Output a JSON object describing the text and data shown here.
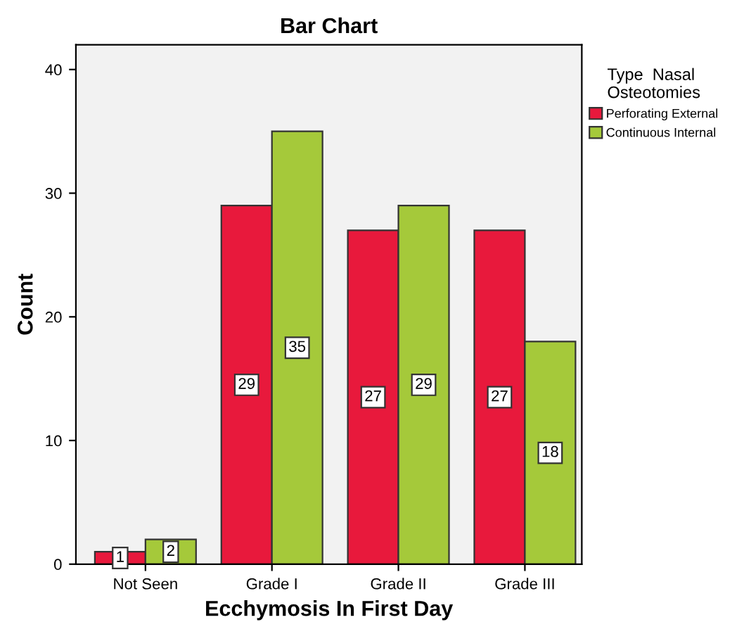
{
  "chart_data": {
    "type": "bar",
    "title": "Bar Chart",
    "xlabel": "Ecchymosis In First Day",
    "ylabel": "Count",
    "legend_title": "Type  Nasal\nOsteotomies",
    "categories": [
      "Not Seen",
      "Grade I",
      "Grade II",
      "Grade III"
    ],
    "series": [
      {
        "name": "Perforating External",
        "color": "#e8193c",
        "values": [
          1,
          29,
          27,
          27
        ]
      },
      {
        "name": "Continuous Internal",
        "color": "#a5c93a",
        "values": [
          2,
          35,
          29,
          18
        ]
      }
    ],
    "ylim": [
      0,
      42
    ],
    "yticks": [
      0,
      10,
      20,
      30,
      40
    ],
    "grid": false,
    "legend": "right",
    "data_labels": true
  }
}
